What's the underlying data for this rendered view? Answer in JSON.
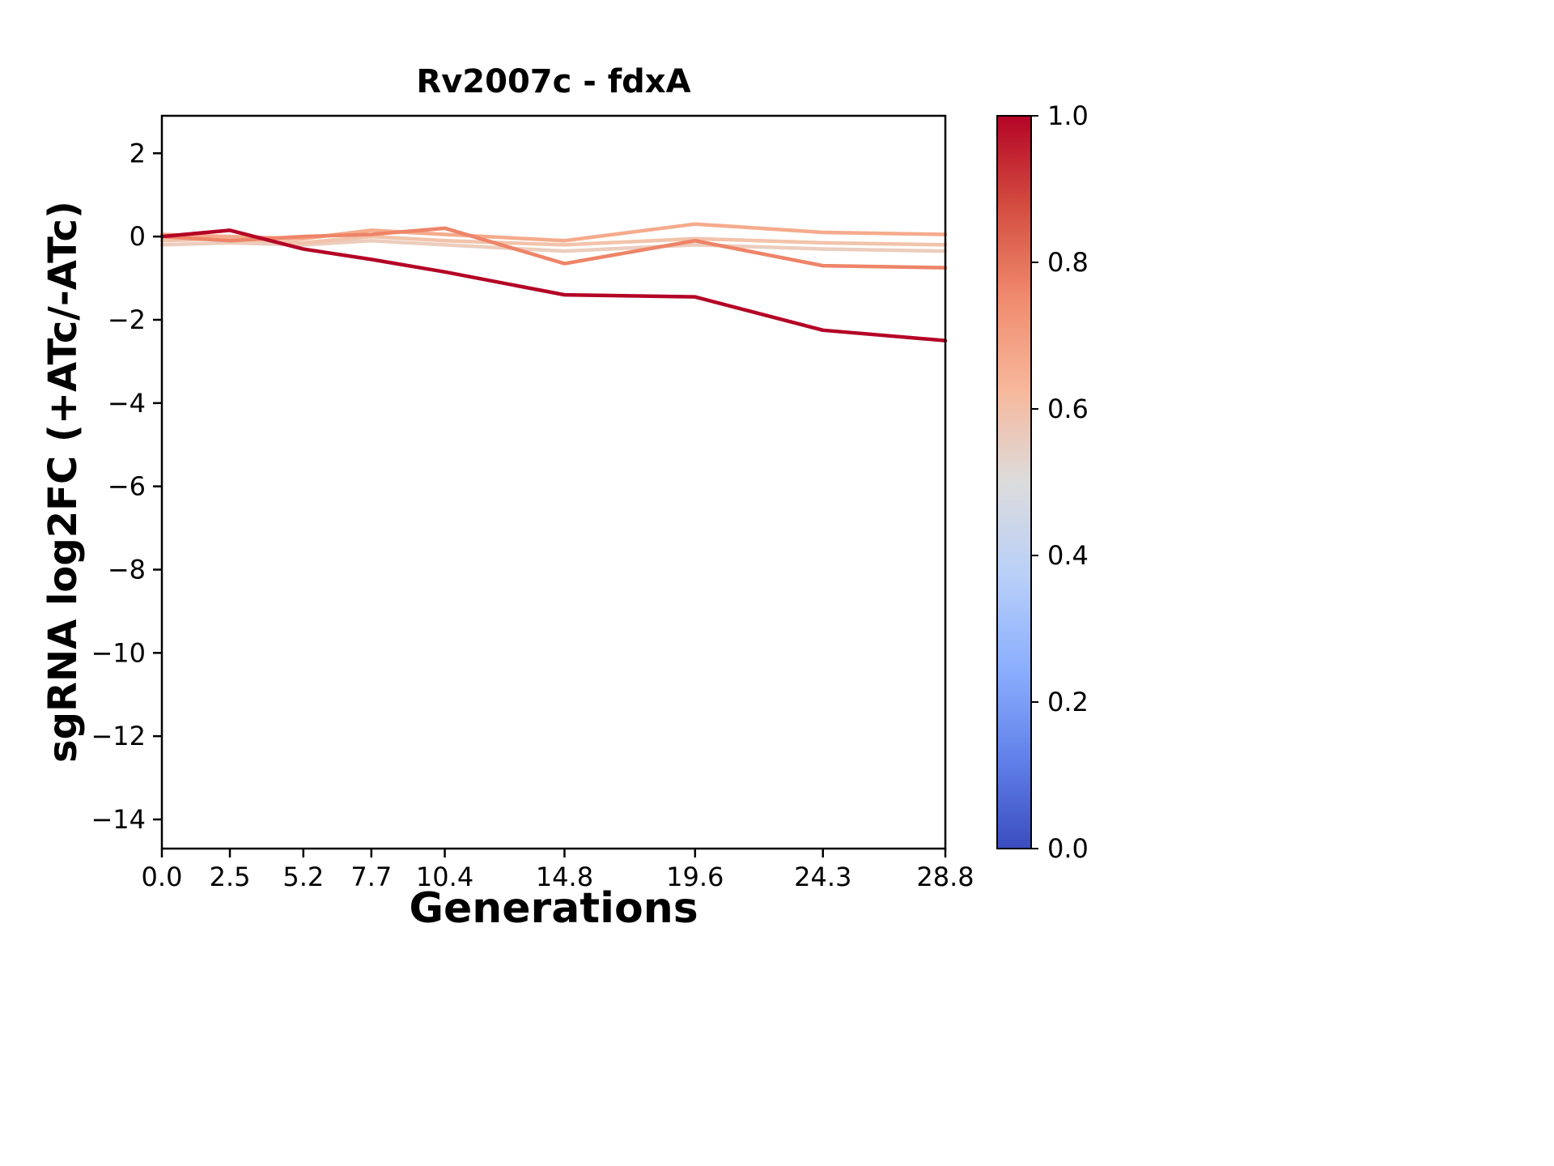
{
  "title": "Rv2007c - fdxA",
  "chart_data": {
    "type": "line",
    "title": "Rv2007c - fdxA",
    "xlabel": "Generations",
    "ylabel": "sgRNA log2FC (+ATc/-ATc)",
    "x": [
      0.0,
      2.5,
      5.2,
      7.7,
      10.4,
      14.8,
      19.6,
      24.3,
      28.8
    ],
    "xtick_labels": [
      "0.0",
      "2.5",
      "5.2",
      "7.7",
      "10.4",
      "14.8",
      "19.6",
      "24.3",
      "28.8"
    ],
    "yticks": [
      2,
      0,
      -2,
      -4,
      -6,
      -8,
      -10,
      -12,
      -14
    ],
    "xlim": [
      0,
      28.8
    ],
    "ylim": [
      -14.7,
      2.9
    ],
    "grid": false,
    "series": [
      {
        "name": "series-1",
        "colormap_value": 1.0,
        "color": "#b40426",
        "values": [
          0.0,
          0.15,
          -0.3,
          -0.55,
          -0.85,
          -1.4,
          -1.45,
          -2.25,
          -2.5
        ]
      },
      {
        "name": "series-2",
        "colormap_value": 0.8,
        "color": "#ee8468",
        "values": [
          0.0,
          -0.1,
          0.0,
          0.05,
          0.2,
          -0.65,
          -0.1,
          -0.7,
          -0.75
        ]
      },
      {
        "name": "series-3",
        "colormap_value": 0.68,
        "color": "#f5ab8c",
        "values": [
          0.05,
          0.0,
          -0.05,
          0.15,
          0.05,
          -0.1,
          0.3,
          0.1,
          0.05
        ]
      },
      {
        "name": "series-4",
        "colormap_value": 0.6,
        "color": "#f2c3ab",
        "values": [
          -0.1,
          -0.05,
          -0.15,
          0.0,
          -0.1,
          -0.2,
          -0.05,
          -0.15,
          -0.2
        ]
      },
      {
        "name": "series-5",
        "colormap_value": 0.56,
        "color": "#eccdbd",
        "values": [
          -0.2,
          -0.15,
          -0.2,
          -0.1,
          -0.2,
          -0.35,
          -0.2,
          -0.3,
          -0.35
        ]
      }
    ],
    "colorbar": {
      "colormap": "coolwarm",
      "min": 0.0,
      "max": 1.0,
      "tick_labels": [
        "1.0",
        "0.8",
        "0.6",
        "0.4",
        "0.2",
        "0.0"
      ],
      "gradient_stops": [
        {
          "offset": 0.0,
          "color": "#b40426"
        },
        {
          "offset": 0.125,
          "color": "#d44e41"
        },
        {
          "offset": 0.25,
          "color": "#f08b6e"
        },
        {
          "offset": 0.375,
          "color": "#f7b89c"
        },
        {
          "offset": 0.5,
          "color": "#dcdcdc"
        },
        {
          "offset": 0.625,
          "color": "#bad0f8"
        },
        {
          "offset": 0.75,
          "color": "#8db0fe"
        },
        {
          "offset": 0.875,
          "color": "#6282ea"
        },
        {
          "offset": 1.0,
          "color": "#3b4cc0"
        }
      ]
    },
    "layout": {
      "axis_color": "#000000",
      "background": "#ffffff"
    }
  }
}
